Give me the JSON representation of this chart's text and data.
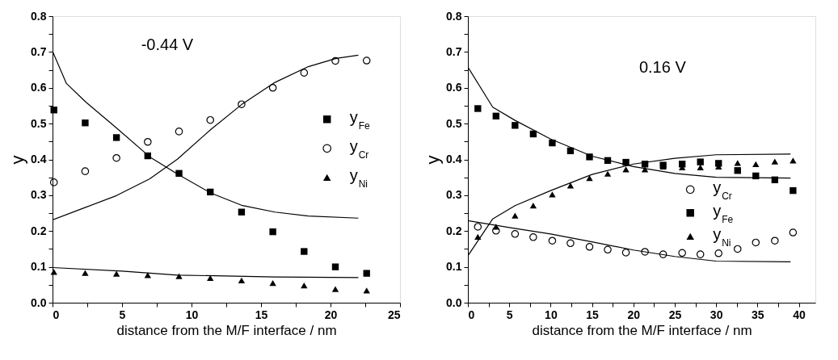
{
  "chart_data": [
    {
      "type": "scatter",
      "xlabel": "distance from the M/F interface / nm",
      "ylabel": "y",
      "annotations": [
        "-0.44 V"
      ],
      "legend": "right",
      "grid": false,
      "xlim": [
        0,
        25
      ],
      "xticks": [
        0,
        {
          "value": 2.5,
          "label": null
        },
        5,
        {
          "value": 7.5,
          "label": null
        },
        10,
        {
          "value": 12.5,
          "label": null
        },
        15,
        {
          "value": 17.5,
          "label": null
        },
        20,
        {
          "value": 22.5,
          "label": null
        },
        25
      ],
      "ylim": [
        0,
        0.8
      ],
      "yticks": [
        {
          "value": 0,
          "label": "0.0"
        },
        {
          "value": 0.05,
          "label": null
        },
        0.1,
        {
          "value": 0.15,
          "label": null
        },
        0.2,
        {
          "value": 0.25,
          "label": null
        },
        0.3,
        {
          "value": 0.35,
          "label": null
        },
        0.4,
        {
          "value": 0.45,
          "label": null
        },
        0.5,
        {
          "value": 0.55,
          "label": null
        },
        0.6,
        {
          "value": 0.65,
          "label": null
        },
        0.7,
        {
          "value": 0.75,
          "label": null
        },
        0.8
      ],
      "series": [
        {
          "name": "y$_{Fe}$",
          "type": "scatter",
          "marker": "square",
          "color": "#000000",
          "x": [
            0.1,
            2.35,
            4.6,
            6.85,
            9.1,
            11.35,
            13.6,
            15.85,
            18.1,
            20.35,
            22.6
          ],
          "values": [
            0.538,
            0.502,
            0.461,
            0.41,
            0.361,
            0.309,
            0.253,
            0.198,
            0.143,
            0.1,
            0.082
          ]
        },
        {
          "name": "y$_{Cr}$",
          "type": "scatter",
          "marker": "circle",
          "color": "#000000",
          "x": [
            0.1,
            2.35,
            4.6,
            6.85,
            9.1,
            11.35,
            13.6,
            15.85,
            18.1,
            20.35,
            22.6
          ],
          "values": [
            0.336,
            0.367,
            0.404,
            0.449,
            0.478,
            0.51,
            0.554,
            0.6,
            0.642,
            0.675,
            0.676
          ]
        },
        {
          "name": "y$_{Ni}$",
          "type": "scatter",
          "marker": "triangle",
          "color": "#000000",
          "x": [
            0.1,
            2.35,
            4.6,
            6.85,
            9.1,
            11.35,
            13.6,
            15.85,
            18.1,
            20.35,
            22.6
          ],
          "values": [
            0.086,
            0.083,
            0.081,
            0.077,
            0.074,
            0.069,
            0.062,
            0.055,
            0.048,
            0.038,
            0.034
          ]
        },
        {
          "type": "line",
          "color": "#000000",
          "x": [
            0,
            1,
            2.4,
            4.6,
            7,
            9,
            11.4,
            13.6,
            16,
            18.4,
            22
          ],
          "values": [
            0.702,
            0.612,
            0.56,
            0.488,
            0.407,
            0.359,
            0.306,
            0.272,
            0.253,
            0.242,
            0.236
          ]
        },
        {
          "type": "line",
          "color": "#000000",
          "x": [
            0,
            2.3,
            4.6,
            7,
            9,
            11.4,
            13.6,
            16,
            18.4,
            20.4,
            22
          ],
          "values": [
            0.231,
            0.265,
            0.299,
            0.346,
            0.401,
            0.484,
            0.553,
            0.615,
            0.659,
            0.682,
            0.691
          ]
        },
        {
          "type": "line",
          "color": "#000000",
          "x": [
            0,
            5,
            9,
            16,
            22
          ],
          "values": [
            0.098,
            0.088,
            0.077,
            0.072,
            0.07
          ]
        }
      ]
    },
    {
      "type": "scatter",
      "xlabel": "distance from the M/F interface / nm",
      "ylabel": "y",
      "annotations": [
        "0.16 V"
      ],
      "legend": "bottom right",
      "grid": false,
      "xlim": [
        0,
        42
      ],
      "xticks": [
        0,
        {
          "value": 2.5,
          "label": null
        },
        5,
        {
          "value": 7.5,
          "label": null
        },
        10,
        {
          "value": 12.5,
          "label": null
        },
        15,
        {
          "value": 17.5,
          "label": null
        },
        20,
        {
          "value": 22.5,
          "label": null
        },
        25,
        {
          "value": 27.5,
          "label": null
        },
        30,
        {
          "value": 32.5,
          "label": null
        },
        35,
        {
          "value": 37.5,
          "label": null
        },
        40
      ],
      "ylim": [
        0,
        0.8
      ],
      "yticks": [
        {
          "value": 0,
          "label": "0.0"
        },
        {
          "value": 0.05,
          "label": null
        },
        0.1,
        {
          "value": 0.15,
          "label": null
        },
        0.2,
        {
          "value": 0.25,
          "label": null
        },
        0.3,
        {
          "value": 0.35,
          "label": null
        },
        0.4,
        {
          "value": 0.45,
          "label": null
        },
        0.5,
        {
          "value": 0.55,
          "label": null
        },
        0.6,
        {
          "value": 0.65,
          "label": null
        },
        0.7,
        {
          "value": 0.75,
          "label": null
        },
        0.8
      ],
      "series": [
        {
          "name": "y$_{Cr}$",
          "type": "scatter",
          "marker": "circle",
          "color": "#000000",
          "x": [
            1.2,
            3.4,
            5.7,
            7.9,
            10.2,
            12.4,
            14.7,
            16.9,
            19.1,
            21.4,
            23.6,
            25.9,
            28.1,
            30.3,
            32.6,
            34.8,
            37.1,
            39.3
          ],
          "values": [
            0.212,
            0.201,
            0.192,
            0.183,
            0.173,
            0.166,
            0.156,
            0.148,
            0.14,
            0.142,
            0.135,
            0.139,
            0.135,
            0.138,
            0.15,
            0.168,
            0.173,
            0.196
          ]
        },
        {
          "name": "y$_{Fe}$",
          "type": "scatter",
          "marker": "square",
          "color": "#000000",
          "x": [
            1.2,
            3.4,
            5.7,
            7.9,
            10.2,
            12.4,
            14.7,
            16.9,
            19.1,
            21.4,
            23.6,
            25.9,
            28.1,
            30.3,
            32.6,
            34.8,
            37.1,
            39.3
          ],
          "values": [
            0.542,
            0.521,
            0.495,
            0.471,
            0.446,
            0.424,
            0.407,
            0.397,
            0.392,
            0.387,
            0.384,
            0.387,
            0.393,
            0.389,
            0.369,
            0.354,
            0.343,
            0.313
          ]
        },
        {
          "name": "y$_{Ni}$",
          "type": "scatter",
          "marker": "triangle",
          "color": "#000000",
          "x": [
            1.2,
            3.4,
            5.7,
            7.9,
            10.2,
            12.4,
            14.7,
            16.9,
            19.1,
            21.4,
            23.6,
            25.9,
            28.1,
            30.3,
            32.6,
            34.8,
            37.1,
            39.3
          ],
          "values": [
            0.184,
            0.212,
            0.243,
            0.271,
            0.302,
            0.327,
            0.348,
            0.36,
            0.372,
            0.372,
            0.38,
            0.378,
            0.378,
            0.38,
            0.39,
            0.387,
            0.394,
            0.397
          ]
        },
        {
          "type": "line",
          "color": "#000000",
          "x": [
            0,
            3,
            5.7,
            10,
            15,
            20,
            25,
            30,
            39
          ],
          "values": [
            0.658,
            0.546,
            0.509,
            0.457,
            0.409,
            0.38,
            0.361,
            0.35,
            0.348
          ]
        },
        {
          "type": "line",
          "color": "#000000",
          "x": [
            0,
            3,
            5.7,
            10,
            15,
            20,
            25,
            30,
            39
          ],
          "values": [
            0.131,
            0.234,
            0.271,
            0.313,
            0.358,
            0.387,
            0.403,
            0.413,
            0.415
          ]
        },
        {
          "type": "line",
          "color": "#000000",
          "x": [
            0,
            5,
            10,
            15,
            20,
            25,
            30,
            39
          ],
          "values": [
            0.229,
            0.21,
            0.192,
            0.17,
            0.147,
            0.129,
            0.116,
            0.114
          ]
        }
      ]
    }
  ]
}
